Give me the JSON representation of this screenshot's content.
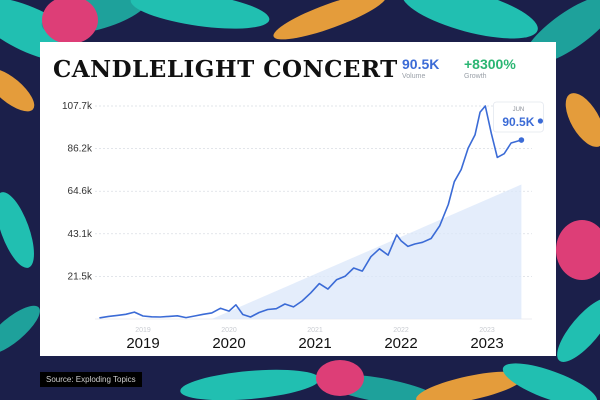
{
  "header": {
    "title": "CANDLELIGHT CONCERT",
    "volume_value": "90.5K",
    "volume_label": "Volume",
    "growth_value": "+8300%",
    "growth_label": "Growth"
  },
  "source": "Source: Exploding Topics",
  "colors": {
    "line": "#3b6bd6",
    "trend_fill": "#dbe7fa",
    "growth": "#2bb673",
    "background": "#1b1f4a",
    "leaf_teal": "#22c9b7",
    "leaf_pink": "#e8417a",
    "leaf_orange": "#f0a43a"
  },
  "chart_data": {
    "type": "line",
    "xlabel": "",
    "ylabel": "",
    "ylim": [
      0,
      107700
    ],
    "xlim": [
      2018.5,
      2023.5
    ],
    "y_ticks": [
      "107.7k",
      "86.2k",
      "64.6k",
      "43.1k",
      "21.5k"
    ],
    "y_tick_values": [
      107700,
      86200,
      64600,
      43100,
      21500
    ],
    "x_ticks_large": [
      "2019",
      "2020",
      "2021",
      "2022",
      "2023"
    ],
    "x_ticks_small": [
      "2019",
      "2020",
      "2021",
      "2022",
      "2023"
    ],
    "x_tick_values": [
      2019,
      2020,
      2021,
      2022,
      2023
    ],
    "grid": true,
    "tooltip": {
      "month": "JUN",
      "value": "90.5K",
      "x": 2023.4,
      "y": 90500
    },
    "trend": {
      "x": [
        2019.8,
        2023.4
      ],
      "y": [
        0,
        68000
      ]
    },
    "series": [
      {
        "x": [
          2018.5,
          2018.6,
          2018.7,
          2018.8,
          2018.9,
          2019.0,
          2019.1,
          2019.2,
          2019.3,
          2019.4,
          2019.5,
          2019.6,
          2019.7,
          2019.8,
          2019.9,
          2020.0,
          2020.08,
          2020.16,
          2020.25,
          2020.35,
          2020.45,
          2020.55,
          2020.65,
          2020.75,
          2020.85,
          2020.95,
          2021.05,
          2021.15,
          2021.25,
          2021.35,
          2021.45,
          2021.55,
          2021.65,
          2021.75,
          2021.85,
          2021.95,
          2022.0,
          2022.08,
          2022.16,
          2022.25,
          2022.35,
          2022.45,
          2022.55,
          2022.62,
          2022.7,
          2022.78,
          2022.86,
          2022.92,
          2022.98,
          2023.05,
          2023.12,
          2023.2,
          2023.28,
          2023.4
        ],
        "y": [
          600,
          1300,
          1800,
          2400,
          3500,
          1500,
          1100,
          1000,
          1300,
          1600,
          700,
          1500,
          2400,
          3100,
          5400,
          4000,
          7200,
          2300,
          1000,
          3300,
          4800,
          5200,
          7600,
          6100,
          9100,
          13200,
          17900,
          15100,
          19800,
          21600,
          25800,
          24200,
          31500,
          35500,
          32300,
          42500,
          39600,
          36700,
          37900,
          38800,
          40700,
          47100,
          57900,
          69400,
          75600,
          86300,
          93100,
          104600,
          107700,
          93900,
          81700,
          83600,
          89000,
          90500
        ]
      }
    ]
  }
}
